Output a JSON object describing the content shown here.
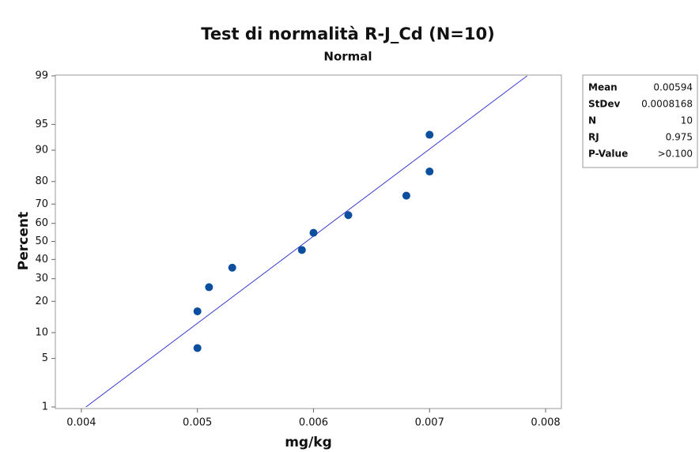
{
  "chart_data": {
    "type": "scatter",
    "title": "Test di normalità R-J_Cd (N=10)",
    "subtitle": "Normal",
    "x_label": "mg/kg",
    "y_label": "Percent",
    "y_scale": "probability",
    "x": [
      0.005,
      0.005,
      0.0051,
      0.0053,
      0.0059,
      0.006,
      0.0063,
      0.0068,
      0.007,
      0.007
    ],
    "values": [
      6.7,
      16.3,
      26,
      35.6,
      45.2,
      54.8,
      64.4,
      74,
      83.7,
      93.3
    ],
    "color": "#0b4f9e",
    "line_color": "#3a3acf",
    "xlim": [
      0.003776,
      0.008136
    ],
    "xticks": [
      0.004,
      0.005,
      0.006,
      0.007,
      0.008
    ],
    "ylim": [
      1,
      99
    ],
    "yticks": [
      1,
      5,
      10,
      20,
      30,
      40,
      50,
      60,
      70,
      80,
      90,
      95,
      99
    ],
    "stats": [
      {
        "label": "Mean",
        "value": 0.00594
      },
      {
        "label": "StDev",
        "value": 0.0008168
      },
      {
        "label": "N",
        "value": 10
      },
      {
        "label": "RJ",
        "value": 0.975
      },
      {
        "label": "P-Value",
        "value": ">0.100"
      }
    ]
  }
}
